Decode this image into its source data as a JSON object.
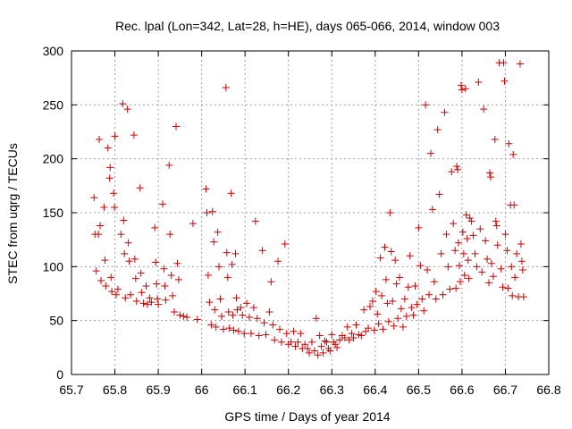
{
  "chart_data": {
    "type": "scatter",
    "title": "Rec. lpal (Lon=342, Lat=28, h=HE), days 065-066, 2014, window 003",
    "xlabel": "GPS time / Days of year 2014",
    "ylabel": "STEC from uqrg / TECUs",
    "xlim": [
      65.7,
      66.8
    ],
    "ylim": [
      0,
      300
    ],
    "xticks": [
      "65.7",
      "65.8",
      "65.9",
      "66",
      "66.1",
      "66.2",
      "66.3",
      "66.4",
      "66.5",
      "66.6",
      "66.7",
      "66.8"
    ],
    "yticks": [
      "0",
      "50",
      "100",
      "150",
      "200",
      "250",
      "300"
    ],
    "grid": true,
    "marker": "+",
    "color": "#cc0000",
    "series": [
      {
        "points": [
          [
            65.752,
            164
          ],
          [
            65.754,
            130
          ],
          [
            65.757,
            96
          ],
          [
            65.762,
            130
          ],
          [
            65.764,
            218
          ],
          [
            65.766,
            138
          ],
          [
            65.768,
            87
          ],
          [
            65.775,
            155
          ],
          [
            65.777,
            106
          ],
          [
            65.779,
            82
          ],
          [
            65.784,
            210
          ],
          [
            65.788,
            182
          ],
          [
            65.789,
            192
          ],
          [
            65.791,
            90
          ],
          [
            65.793,
            77
          ],
          [
            65.797,
            168
          ],
          [
            65.799,
            155
          ],
          [
            65.8,
            221
          ],
          [
            65.803,
            74
          ],
          [
            65.807,
            79
          ],
          [
            65.814,
            130
          ],
          [
            65.818,
            251
          ],
          [
            65.82,
            143
          ],
          [
            65.822,
            112
          ],
          [
            65.824,
            71
          ],
          [
            65.829,
            246
          ],
          [
            65.831,
            122
          ],
          [
            65.833,
            105
          ],
          [
            65.836,
            74
          ],
          [
            65.844,
            222
          ],
          [
            65.846,
            107
          ],
          [
            65.848,
            89
          ],
          [
            65.85,
            68
          ],
          [
            65.858,
            173
          ],
          [
            65.86,
            94
          ],
          [
            65.862,
            76
          ],
          [
            65.866,
            66
          ],
          [
            65.872,
            82
          ],
          [
            65.875,
            65
          ],
          [
            65.88,
            71
          ],
          [
            65.884,
            67
          ],
          [
            65.892,
            136
          ],
          [
            65.894,
            104
          ],
          [
            65.896,
            84
          ],
          [
            65.898,
            70
          ],
          [
            65.9,
            65
          ],
          [
            65.91,
            158
          ],
          [
            65.913,
            98
          ],
          [
            65.915,
            82
          ],
          [
            65.917,
            69
          ],
          [
            65.925,
            194
          ],
          [
            65.927,
            130
          ],
          [
            65.93,
            92
          ],
          [
            65.933,
            73
          ],
          [
            65.937,
            58
          ],
          [
            65.941,
            230
          ],
          [
            65.944,
            103
          ],
          [
            65.947,
            88
          ],
          [
            65.95,
            55
          ],
          [
            65.958,
            54
          ],
          [
            65.966,
            53
          ],
          [
            65.98,
            140
          ],
          [
            65.99,
            51
          ],
          [
            66.01,
            172
          ],
          [
            66.012,
            150
          ],
          [
            66.015,
            92
          ],
          [
            66.018,
            67
          ],
          [
            66.022,
            46
          ],
          [
            66.025,
            151
          ],
          [
            66.028,
            123
          ],
          [
            66.03,
            60
          ],
          [
            66.033,
            44
          ],
          [
            66.037,
            132
          ],
          [
            66.04,
            100
          ],
          [
            66.043,
            70
          ],
          [
            66.046,
            54
          ],
          [
            66.05,
            42
          ],
          [
            66.056,
            266
          ],
          [
            66.058,
            113
          ],
          [
            66.06,
            90
          ],
          [
            66.062,
            58
          ],
          [
            66.064,
            43
          ],
          [
            66.068,
            168
          ],
          [
            66.07,
            102
          ],
          [
            66.072,
            55
          ],
          [
            66.074,
            41
          ],
          [
            66.078,
            112
          ],
          [
            66.08,
            71
          ],
          [
            66.082,
            60
          ],
          [
            66.085,
            40
          ],
          [
            66.09,
            62
          ],
          [
            66.094,
            55
          ],
          [
            66.098,
            38
          ],
          [
            66.104,
            66
          ],
          [
            66.11,
            53
          ],
          [
            66.114,
            38
          ],
          [
            66.12,
            62
          ],
          [
            66.124,
            142
          ],
          [
            66.128,
            52
          ],
          [
            66.132,
            36
          ],
          [
            66.14,
            115
          ],
          [
            66.144,
            48
          ],
          [
            66.148,
            37
          ],
          [
            66.156,
            58
          ],
          [
            66.16,
            86
          ],
          [
            66.164,
            46
          ],
          [
            66.168,
            32
          ],
          [
            66.176,
            105
          ],
          [
            66.18,
            42
          ],
          [
            66.184,
            30
          ],
          [
            66.192,
            121
          ],
          [
            66.196,
            38
          ],
          [
            66.2,
            28
          ],
          [
            66.206,
            30
          ],
          [
            66.212,
            40
          ],
          [
            66.216,
            26
          ],
          [
            66.222,
            30
          ],
          [
            66.228,
            38
          ],
          [
            66.232,
            24
          ],
          [
            66.238,
            28
          ],
          [
            66.244,
            24
          ],
          [
            66.248,
            20
          ],
          [
            66.254,
            30
          ],
          [
            66.26,
            22
          ],
          [
            66.264,
            52
          ],
          [
            66.268,
            18
          ],
          [
            66.272,
            36
          ],
          [
            66.276,
            26
          ],
          [
            66.28,
            20
          ],
          [
            66.284,
            31
          ],
          [
            66.288,
            30
          ],
          [
            66.292,
            24
          ],
          [
            66.296,
            22
          ],
          [
            66.3,
            37
          ],
          [
            66.304,
            30
          ],
          [
            66.308,
            28
          ],
          [
            66.312,
            25
          ],
          [
            66.318,
            32
          ],
          [
            66.324,
            36
          ],
          [
            66.33,
            34
          ],
          [
            66.336,
            44
          ],
          [
            66.34,
            32
          ],
          [
            66.346,
            38
          ],
          [
            66.35,
            34
          ],
          [
            66.356,
            46
          ],
          [
            66.362,
            37
          ],
          [
            66.368,
            36
          ],
          [
            66.374,
            60
          ],
          [
            66.378,
            40
          ],
          [
            66.384,
            43
          ],
          [
            66.388,
            63
          ],
          [
            66.394,
            68
          ],
          [
            66.398,
            41
          ],
          [
            66.402,
            77
          ],
          [
            66.405,
            56
          ],
          [
            66.408,
            47
          ],
          [
            66.412,
            108
          ],
          [
            66.415,
            73
          ],
          [
            66.418,
            42
          ],
          [
            66.422,
            118
          ],
          [
            66.425,
            88
          ],
          [
            66.428,
            66
          ],
          [
            66.431,
            49
          ],
          [
            66.434,
            150
          ],
          [
            66.437,
            114
          ],
          [
            66.44,
            68
          ],
          [
            66.443,
            45
          ],
          [
            66.446,
            106
          ],
          [
            66.449,
            84
          ],
          [
            66.452,
            52
          ],
          [
            66.456,
            90
          ],
          [
            66.46,
            61
          ],
          [
            66.464,
            44
          ],
          [
            66.468,
            70
          ],
          [
            66.472,
            54
          ],
          [
            66.476,
            81
          ],
          [
            66.48,
            110
          ],
          [
            66.484,
            62
          ],
          [
            66.488,
            55
          ],
          [
            66.492,
            82
          ],
          [
            66.496,
            65
          ],
          [
            66.5,
            136
          ],
          [
            66.504,
            101
          ],
          [
            66.508,
            70
          ],
          [
            66.512,
            59
          ],
          [
            66.516,
            250
          ],
          [
            66.52,
            97
          ],
          [
            66.524,
            74
          ],
          [
            66.528,
            205
          ],
          [
            66.532,
            153
          ],
          [
            66.536,
            86
          ],
          [
            66.54,
            70
          ],
          [
            66.544,
            227
          ],
          [
            66.548,
            167
          ],
          [
            66.552,
            112
          ],
          [
            66.556,
            74
          ],
          [
            66.56,
            243
          ],
          [
            66.564,
            130
          ],
          [
            66.568,
            100
          ],
          [
            66.572,
            79
          ],
          [
            66.576,
            188
          ],
          [
            66.58,
            140
          ],
          [
            66.584,
            115
          ],
          [
            66.586,
            80
          ],
          [
            66.588,
            193
          ],
          [
            66.59,
            190
          ],
          [
            66.592,
            122
          ],
          [
            66.594,
            101
          ],
          [
            66.596,
            86
          ],
          [
            66.598,
            268
          ],
          [
            66.6,
            264
          ],
          [
            66.602,
            132
          ],
          [
            66.604,
            112
          ],
          [
            66.606,
            92
          ],
          [
            66.608,
            265
          ],
          [
            66.61,
            148
          ],
          [
            66.612,
            126
          ],
          [
            66.614,
            106
          ],
          [
            66.616,
            89
          ],
          [
            66.618,
            145
          ],
          [
            66.622,
            142
          ],
          [
            66.626,
            129
          ],
          [
            66.63,
            112
          ],
          [
            66.634,
            100
          ],
          [
            66.638,
            271
          ],
          [
            66.642,
            135
          ],
          [
            66.646,
            95
          ],
          [
            66.65,
            246
          ],
          [
            66.654,
            124
          ],
          [
            66.658,
            107
          ],
          [
            66.662,
            85
          ],
          [
            66.664,
            187
          ],
          [
            66.666,
            183
          ],
          [
            66.668,
            103
          ],
          [
            66.672,
            91
          ],
          [
            66.676,
            218
          ],
          [
            66.678,
            142
          ],
          [
            66.68,
            138
          ],
          [
            66.682,
            120
          ],
          [
            66.686,
            289
          ],
          [
            66.69,
            98
          ],
          [
            66.694,
            81
          ],
          [
            66.696,
            289
          ],
          [
            66.698,
            272
          ],
          [
            66.7,
            130
          ],
          [
            66.704,
            115
          ],
          [
            66.706,
            80
          ],
          [
            66.708,
            214
          ],
          [
            66.712,
            157
          ],
          [
            66.714,
            100
          ],
          [
            66.716,
            73
          ],
          [
            66.718,
            204
          ],
          [
            66.72,
            157
          ],
          [
            66.722,
            90
          ],
          [
            66.726,
            112
          ],
          [
            66.73,
            72
          ],
          [
            66.734,
            288
          ],
          [
            66.736,
            121
          ],
          [
            66.738,
            105
          ],
          [
            66.74,
            97
          ],
          [
            66.742,
            72
          ]
        ]
      }
    ]
  }
}
